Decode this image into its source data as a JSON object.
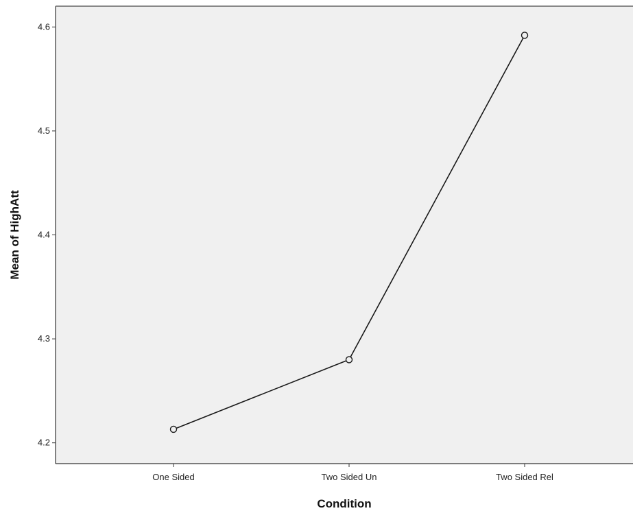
{
  "chart_data": {
    "type": "line",
    "title": "",
    "xlabel": "Condition",
    "ylabel": "Mean of HighAtt",
    "categories": [
      "One Sided",
      "Two Sided Un",
      "Two Sided Rel"
    ],
    "series": [
      {
        "values": [
          4.213,
          4.28,
          4.592
        ]
      }
    ],
    "ylim": [
      4.18,
      4.62
    ],
    "yticks": [
      "4.2",
      "4.3",
      "4.4",
      "4.5",
      "4.6"
    ],
    "grid": false,
    "legend": "none",
    "marker": "open-circle",
    "colors": {
      "plot_bg": "#f0f0f0",
      "line": "#1a1a1a",
      "axis": "#333333",
      "page_bg": "#ffffff"
    }
  }
}
